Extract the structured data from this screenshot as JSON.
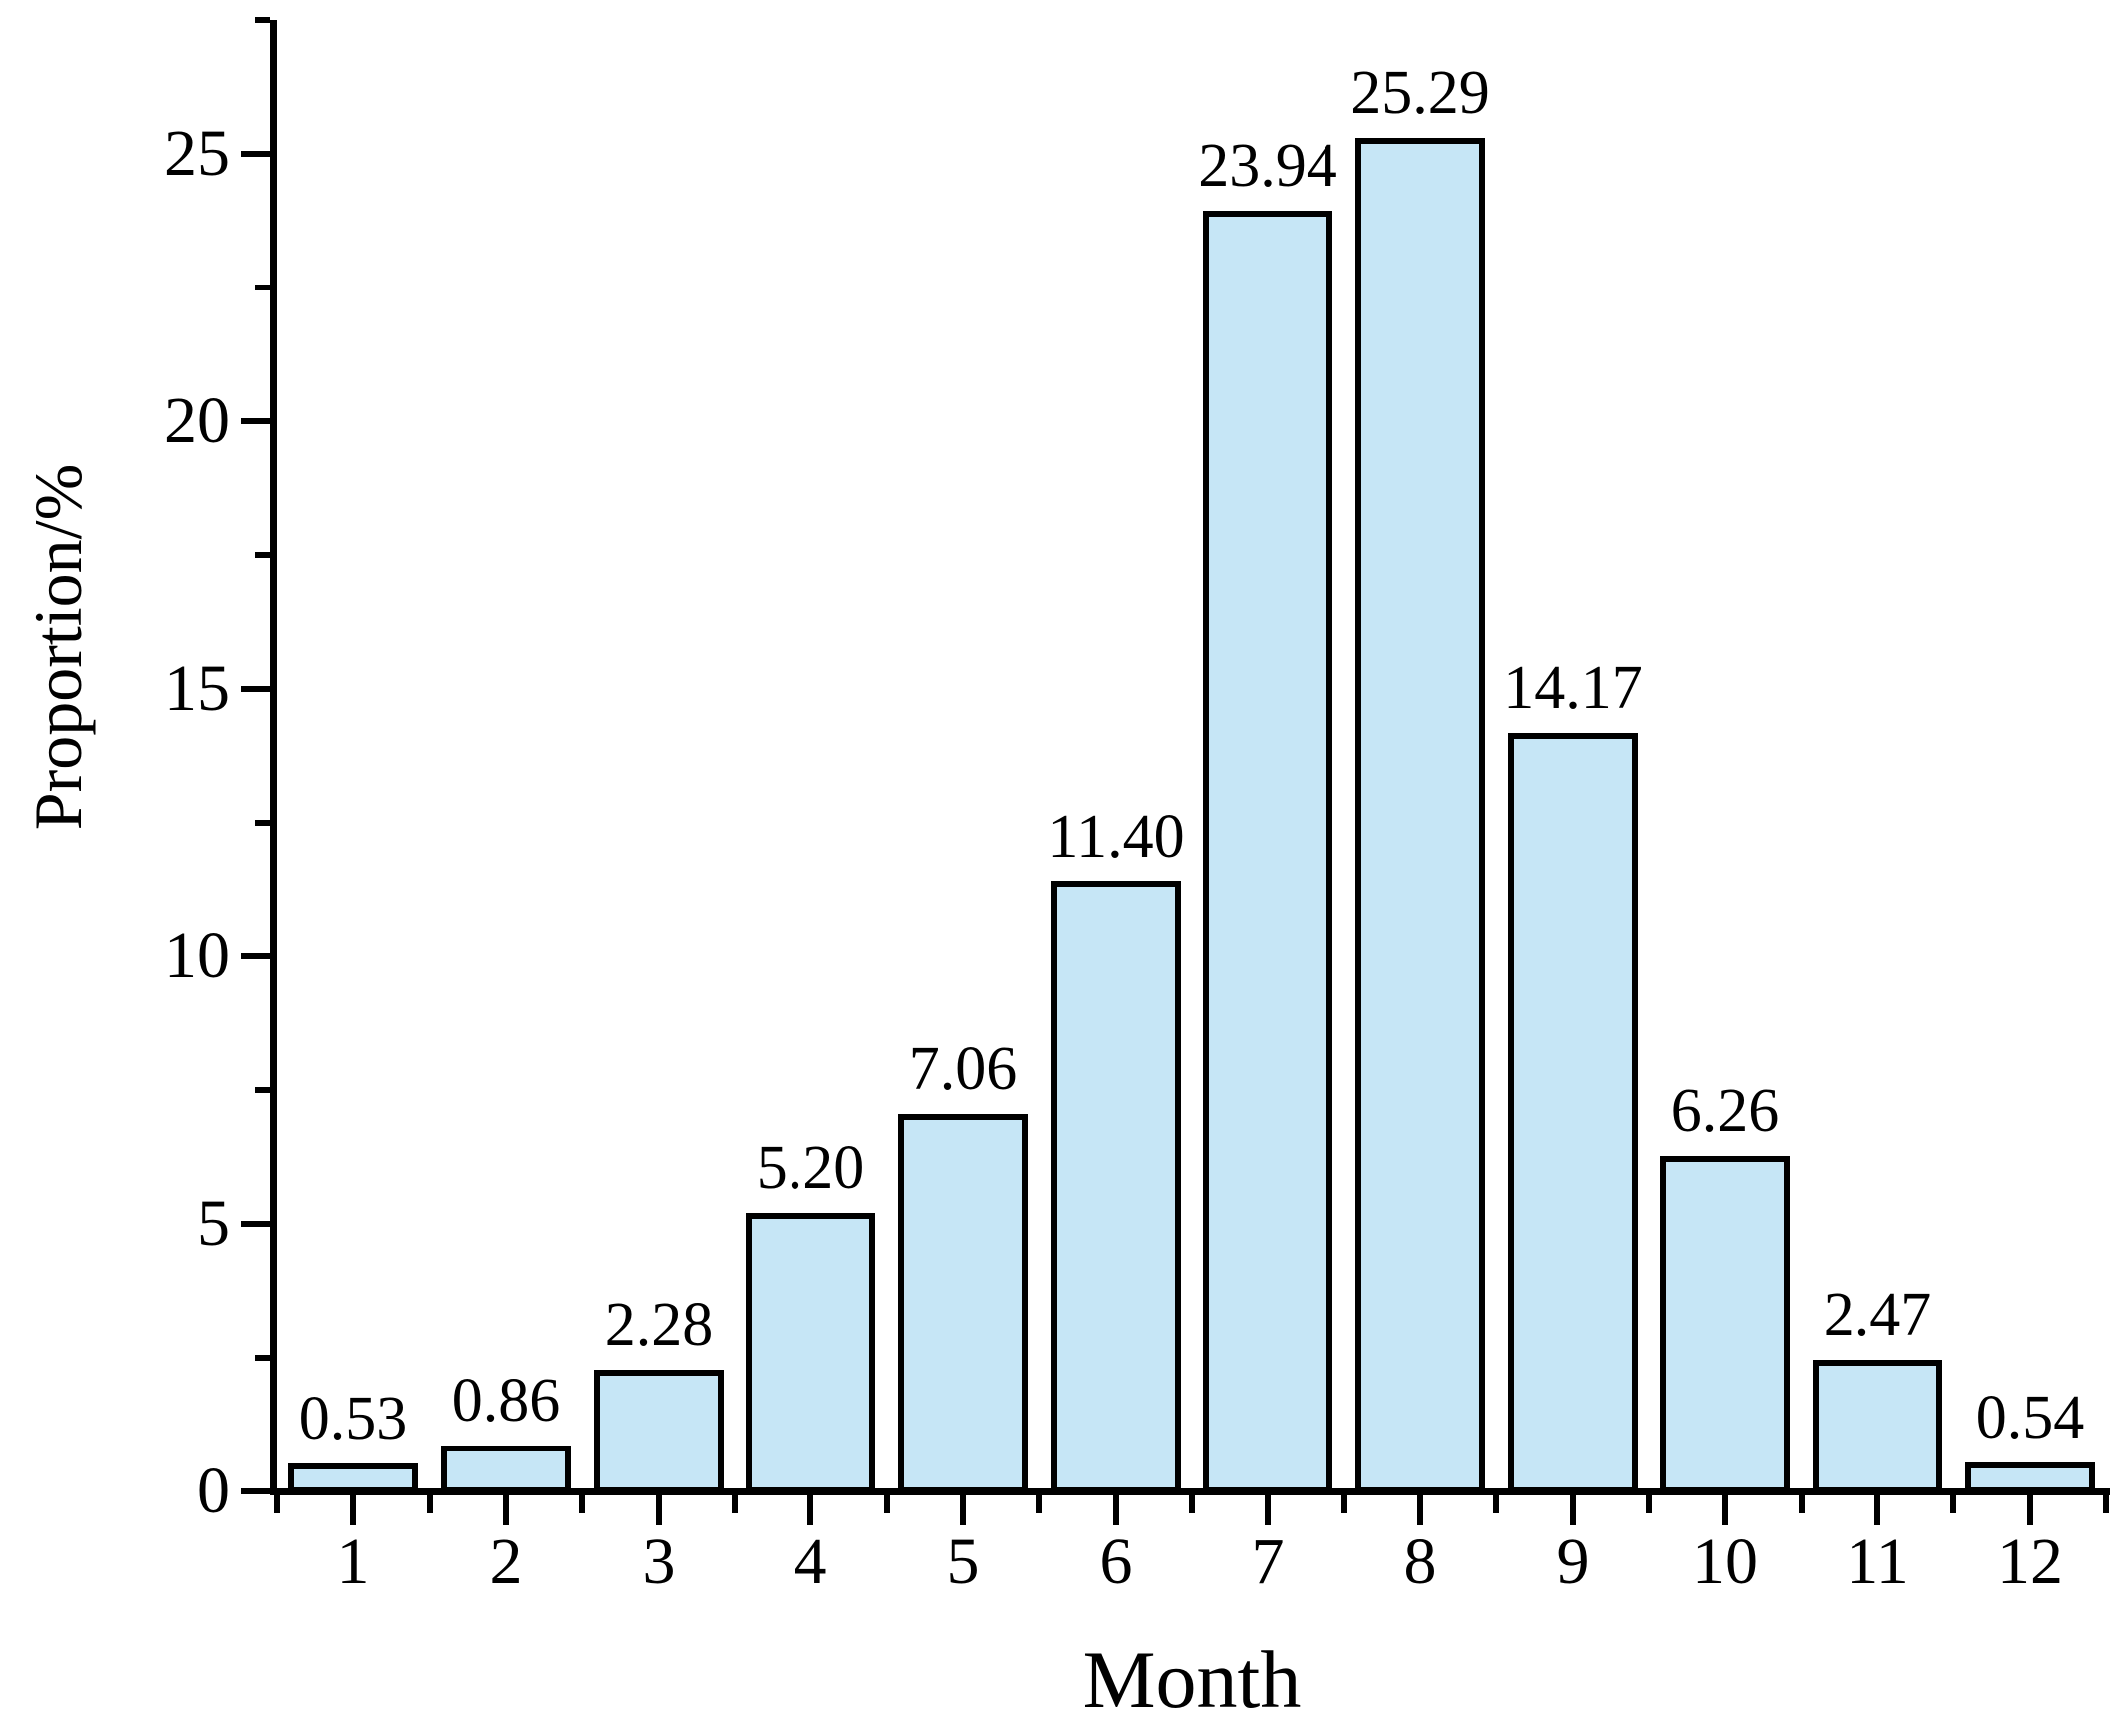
{
  "chart_data": {
    "type": "bar",
    "title": "",
    "categories": [
      "1",
      "2",
      "3",
      "4",
      "5",
      "6",
      "7",
      "8",
      "9",
      "10",
      "11",
      "12"
    ],
    "values": [
      0.53,
      0.86,
      2.28,
      5.2,
      7.06,
      11.4,
      23.94,
      25.29,
      14.17,
      6.26,
      2.47,
      0.54
    ],
    "value_labels": [
      "0.53",
      "0.86",
      "2.28",
      "5.20",
      "7.06",
      "11.40",
      "23.94",
      "25.29",
      "14.17",
      "6.26",
      "2.47",
      "0.54"
    ],
    "xlabel": "Month",
    "ylabel": "Proportion/%",
    "ylim": [
      0,
      27.5
    ],
    "yticks_major": [
      0,
      5,
      10,
      15,
      20,
      25
    ],
    "yticks_minor": [
      2.5,
      7.5,
      12.5,
      17.5,
      22.5,
      27.5
    ],
    "grid": false,
    "legend": "none",
    "bar_fill": "#C6E6F6",
    "bar_border": "#000000",
    "axis_color": "#000000",
    "text_color": "#000000",
    "background": "#FFFFFF"
  }
}
